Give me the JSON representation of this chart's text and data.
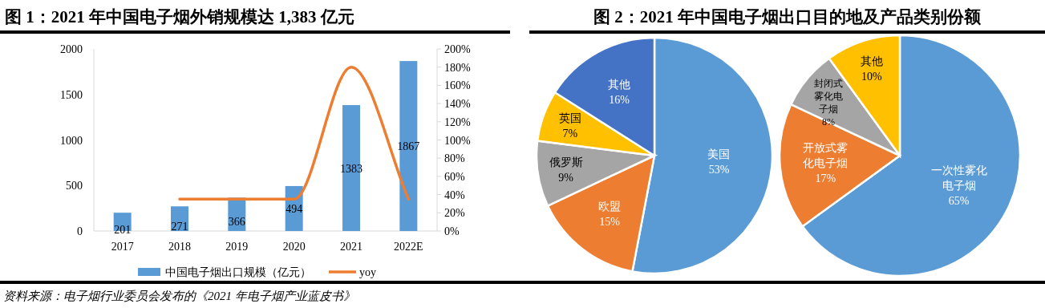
{
  "chart_data": [
    {
      "type": "bar",
      "title": "图 1：2021 年中国电子烟外销规模达 1,383 亿元",
      "categories": [
        "2017",
        "2018",
        "2019",
        "2020",
        "2021",
        "2022E"
      ],
      "series": [
        {
          "name": "中国电子烟出口规模（亿元）",
          "type": "bar",
          "color": "#5b9bd5",
          "values": [
            201,
            271,
            366,
            494,
            1383,
            1867
          ],
          "data_labels": true
        },
        {
          "name": "yoy",
          "type": "line",
          "axis": "y2",
          "color": "#ed7d31",
          "values": [
            null,
            35,
            35,
            35,
            180,
            35
          ]
        }
      ],
      "ylim": [
        0,
        2000
      ],
      "yticks": [
        0,
        500,
        1000,
        1500,
        2000
      ],
      "y2lim": [
        0,
        200
      ],
      "y2ticks": [
        {
          "value": 0,
          "label": "0%"
        },
        {
          "value": 20,
          "label": "20%"
        },
        {
          "value": 40,
          "label": "40%"
        },
        {
          "value": 60,
          "label": "60%"
        },
        {
          "value": 80,
          "label": "80%"
        },
        {
          "value": 100,
          "label": "100%"
        },
        {
          "value": 120,
          "label": "120%"
        },
        {
          "value": 140,
          "label": "140%"
        },
        {
          "value": 160,
          "label": "160%"
        },
        {
          "value": 180,
          "label": "180%"
        },
        {
          "value": 200,
          "label": "200%"
        }
      ],
      "legend": "bottom",
      "grid": false,
      "marker": "none",
      "annotations": [
        "资料来源：电子烟行业委员会发布的《2021 年电子烟产业蓝皮书》"
      ]
    },
    {
      "type": "pie",
      "title": "图 2：2021 年中国电子烟出口目的地及产品类别份额",
      "categories": [
        "美国",
        "欧盟",
        "俄罗斯",
        "英国",
        "其他"
      ],
      "values": [
        53,
        15,
        9,
        7,
        16
      ],
      "value_labels": [
        "53%",
        "15%",
        "9%",
        "7%",
        "16%"
      ],
      "colors": [
        "#5b9bd5",
        "#ed7d31",
        "#a5a5a5",
        "#ffc000",
        "#4472c4"
      ]
    },
    {
      "type": "pie",
      "categories": [
        "一次性雾化电子烟",
        "开放式雾化电子烟",
        "封闭式雾化电子烟",
        "其他"
      ],
      "values": [
        65,
        17,
        8,
        10
      ],
      "value_labels": [
        "65%",
        "17%",
        "8%",
        "10%"
      ],
      "colors": [
        "#5b9bd5",
        "#ed7d31",
        "#a5a5a5",
        "#ffc000"
      ]
    }
  ]
}
